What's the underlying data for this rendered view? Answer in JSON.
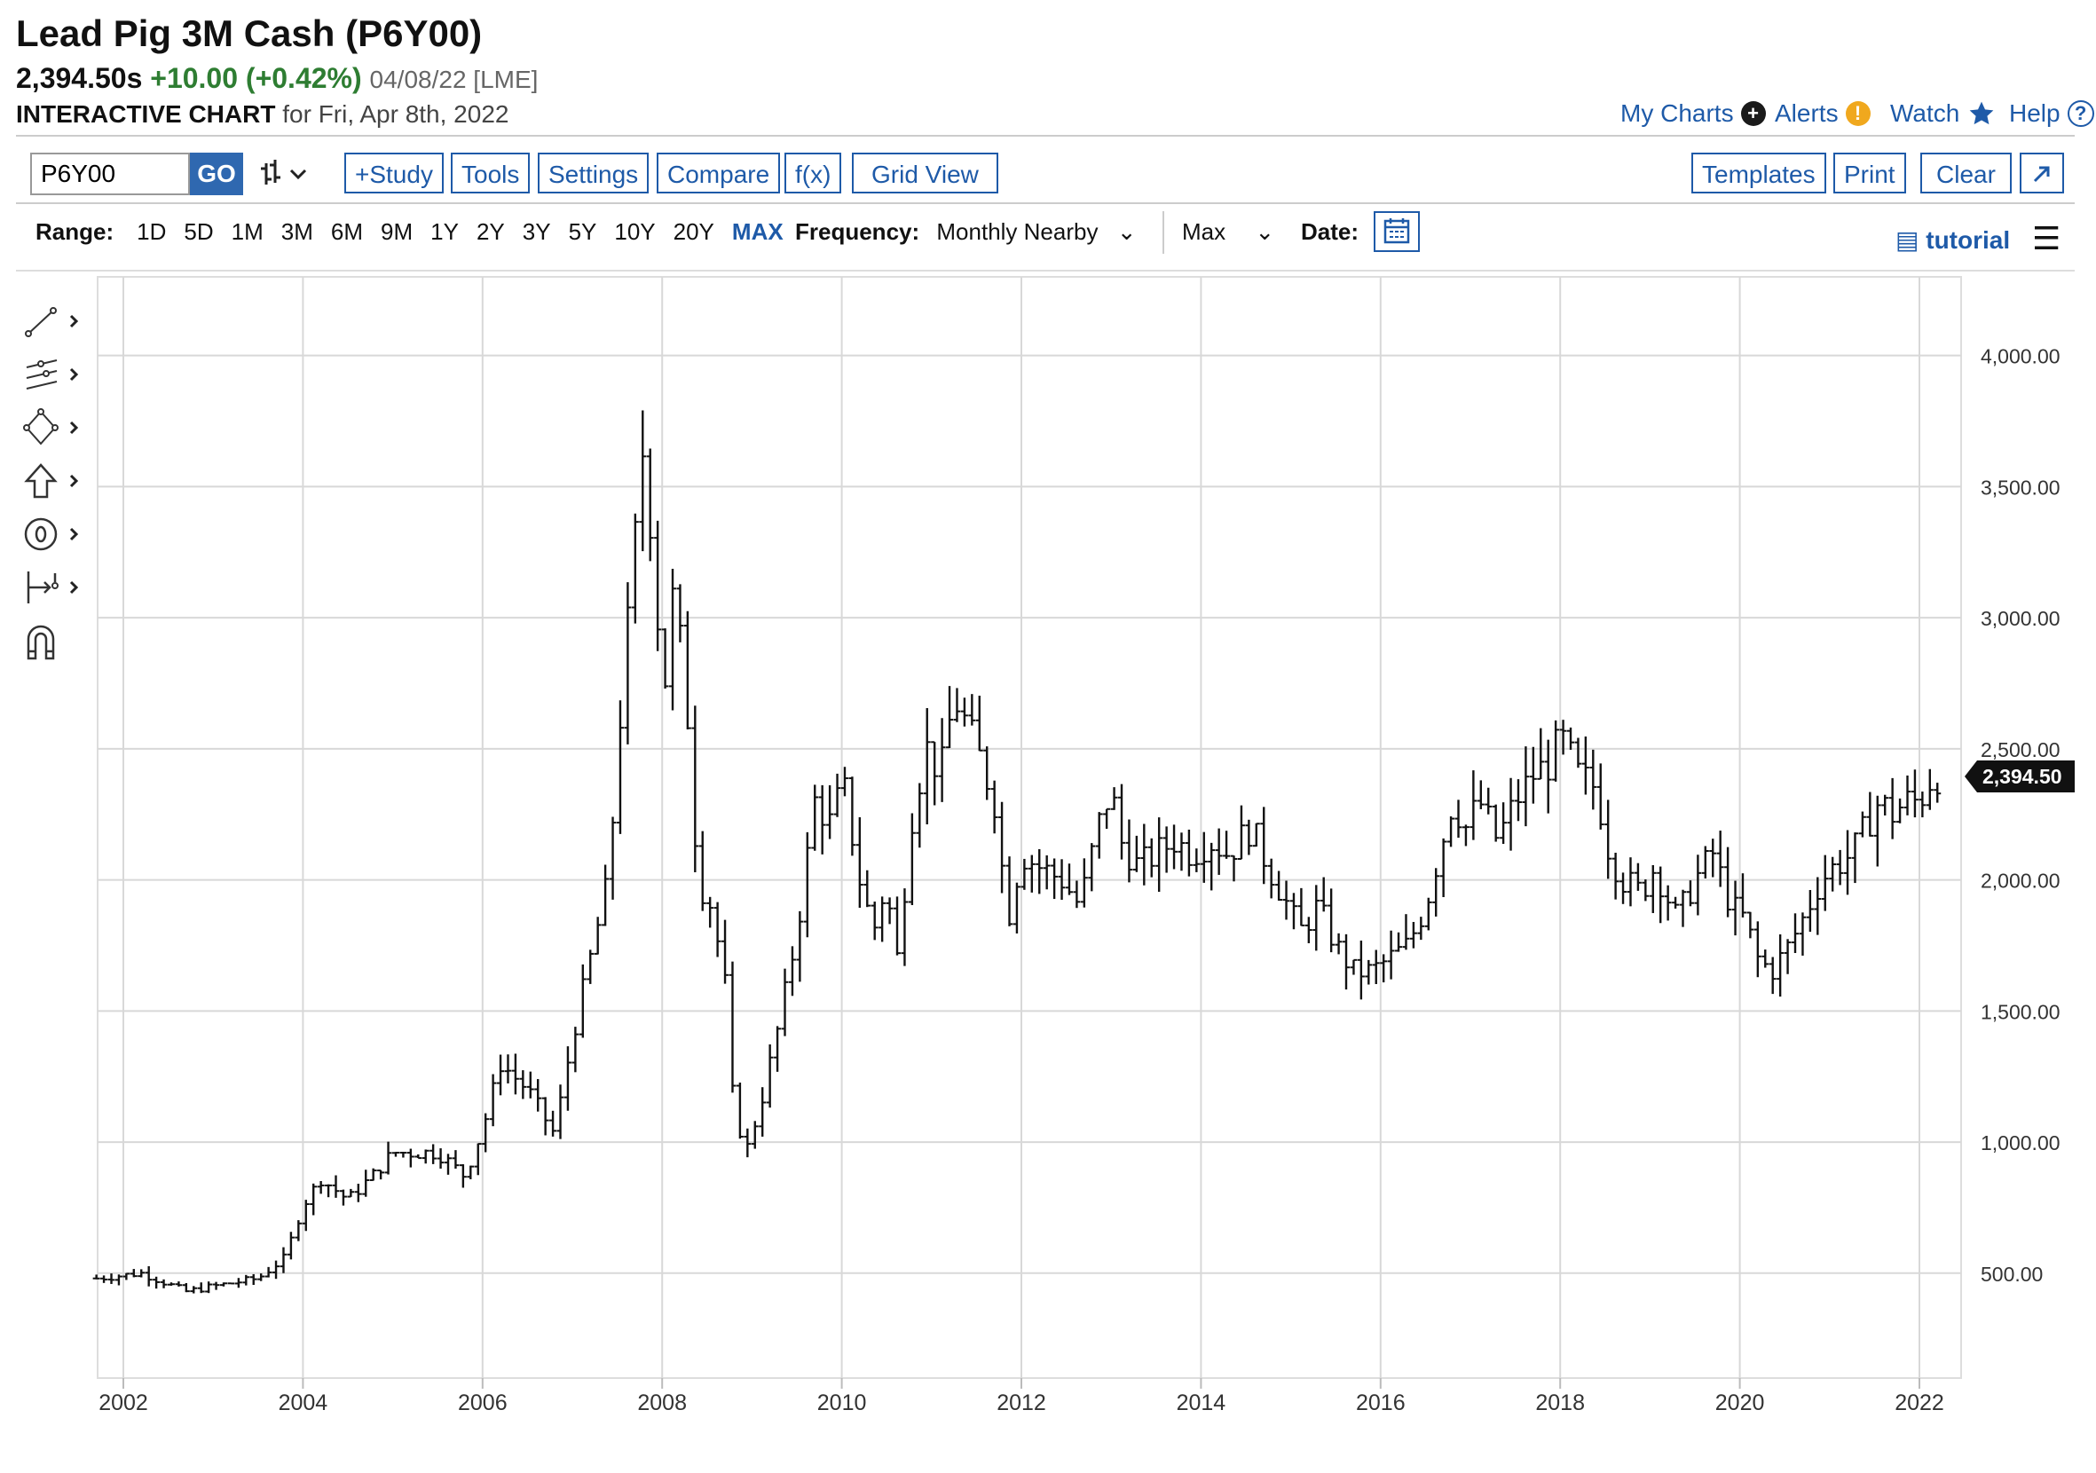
{
  "header": {
    "title": "Lead Pig 3M Cash (P6Y00)",
    "last": "2,394.50s",
    "change": "+10.00 (+0.42%)",
    "date_exchange": "04/08/22 [LME]",
    "subtitle_bold": "INTERACTIVE CHART",
    "subtitle_rest": "for Fri, Apr 8th, 2022"
  },
  "top_links": {
    "my_charts": "My Charts",
    "alerts": "Alerts",
    "watch": "Watch",
    "help": "Help"
  },
  "toolbar": {
    "symbol_value": "P6Y00",
    "go": "GO",
    "study": "+Study",
    "tools": "Tools",
    "settings": "Settings",
    "compare": "Compare",
    "fx": "f(x)",
    "grid_view": "Grid View",
    "templates": "Templates",
    "print": "Print",
    "clear": "Clear",
    "expand_icon": "expand-icon"
  },
  "range_bar": {
    "label": "Range:",
    "options": [
      "1D",
      "5D",
      "1M",
      "3M",
      "6M",
      "9M",
      "1Y",
      "2Y",
      "3Y",
      "5Y",
      "10Y",
      "20Y",
      "MAX"
    ],
    "active": "MAX",
    "frequency_label": "Frequency:",
    "frequency_value": "Monthly Nearby",
    "period_value": "Max",
    "date_label": "Date:",
    "tutorial": "tutorial"
  },
  "left_tools": [
    "line-tool-icon",
    "multi-line-tool-icon",
    "shape-tool-icon",
    "arrow-up-icon",
    "price-label-icon",
    "measure-tool-icon",
    "magnet-icon"
  ],
  "colors": {
    "accent": "#1e5aa8",
    "positive": "#2e7d32",
    "bars": "#111111",
    "grid": "#dddddd"
  },
  "chart_data": {
    "type": "ohlc",
    "frequency": "monthly",
    "x_tick_labels": [
      "2002",
      "2004",
      "2006",
      "2008",
      "2010",
      "2012",
      "2014",
      "2016",
      "2018",
      "2020",
      "2022"
    ],
    "y_tick_labels": [
      "500.00",
      "1,000.00",
      "1,500.00",
      "2,000.00",
      "2,500.00",
      "3,000.00",
      "3,500.00",
      "4,000.00"
    ],
    "ylim": [
      100,
      4300
    ],
    "last_price_label": "2,394.50",
    "last_price": 2394.5,
    "grid": true,
    "series_close": [
      [
        2001.7,
        480
      ],
      [
        2002.2,
        500
      ],
      [
        2002.7,
        430
      ],
      [
        2003.0,
        450
      ],
      [
        2003.5,
        480
      ],
      [
        2003.8,
        560
      ],
      [
        2004.0,
        760
      ],
      [
        2004.2,
        860
      ],
      [
        2004.5,
        780
      ],
      [
        2004.8,
        880
      ],
      [
        2005.0,
        960
      ],
      [
        2005.5,
        960
      ],
      [
        2005.8,
        870
      ],
      [
        2006.0,
        1050
      ],
      [
        2006.2,
        1300
      ],
      [
        2006.5,
        1200
      ],
      [
        2006.8,
        1030
      ],
      [
        2007.0,
        1400
      ],
      [
        2007.2,
        1700
      ],
      [
        2007.4,
        2000
      ],
      [
        2007.55,
        2700
      ],
      [
        2007.7,
        3300
      ],
      [
        2007.8,
        3700
      ],
      [
        2007.95,
        3000
      ],
      [
        2008.0,
        2600
      ],
      [
        2008.1,
        3100
      ],
      [
        2008.25,
        2800
      ],
      [
        2008.4,
        2000
      ],
      [
        2008.55,
        1900
      ],
      [
        2008.7,
        1600
      ],
      [
        2008.8,
        1100
      ],
      [
        2008.95,
        980
      ],
      [
        2009.1,
        1150
      ],
      [
        2009.3,
        1450
      ],
      [
        2009.5,
        1800
      ],
      [
        2009.7,
        2300
      ],
      [
        2009.9,
        2200
      ],
      [
        2010.0,
        2400
      ],
      [
        2010.2,
        2000
      ],
      [
        2010.35,
        1800
      ],
      [
        2010.5,
        2000
      ],
      [
        2010.6,
        1650
      ],
      [
        2010.8,
        2300
      ],
      [
        2010.95,
        2500
      ],
      [
        2011.1,
        2400
      ],
      [
        2011.25,
        2700
      ],
      [
        2011.5,
        2500
      ],
      [
        2011.7,
        2300
      ],
      [
        2011.85,
        1850
      ],
      [
        2012.0,
        2100
      ],
      [
        2012.2,
        2050
      ],
      [
        2012.45,
        2000
      ],
      [
        2012.65,
        1900
      ],
      [
        2012.85,
        2200
      ],
      [
        2013.0,
        2350
      ],
      [
        2013.1,
        2150
      ],
      [
        2013.3,
        2050
      ],
      [
        2013.5,
        2100
      ],
      [
        2013.7,
        2150
      ],
      [
        2013.9,
        2100
      ],
      [
        2014.1,
        2150
      ],
      [
        2014.3,
        2100
      ],
      [
        2014.55,
        2200
      ],
      [
        2014.75,
        2050
      ],
      [
        2014.9,
        1950
      ],
      [
        2015.1,
        1800
      ],
      [
        2015.3,
        1900
      ],
      [
        2015.5,
        1750
      ],
      [
        2015.7,
        1650
      ],
      [
        2015.9,
        1650
      ],
      [
        2016.1,
        1700
      ],
      [
        2016.3,
        1750
      ],
      [
        2016.5,
        1900
      ],
      [
        2016.65,
        2100
      ],
      [
        2016.8,
        2300
      ],
      [
        2016.95,
        2200
      ],
      [
        2017.1,
        2300
      ],
      [
        2017.3,
        2150
      ],
      [
        2017.5,
        2300
      ],
      [
        2017.7,
        2400
      ],
      [
        2017.9,
        2450
      ],
      [
        2018.0,
        2550
      ],
      [
        2018.2,
        2400
      ],
      [
        2018.4,
        2350
      ],
      [
        2018.55,
        2100
      ],
      [
        2018.7,
        2000
      ],
      [
        2018.9,
        1950
      ],
      [
        2019.05,
        2050
      ],
      [
        2019.3,
        1850
      ],
      [
        2019.5,
        2000
      ],
      [
        2019.7,
        2100
      ],
      [
        2019.9,
        1900
      ],
      [
        2020.05,
        1850
      ],
      [
        2020.2,
        1700
      ],
      [
        2020.35,
        1650
      ],
      [
        2020.55,
        1750
      ],
      [
        2020.7,
        1850
      ],
      [
        2020.9,
        2000
      ],
      [
        2021.05,
        2050
      ],
      [
        2021.25,
        2100
      ],
      [
        2021.4,
        2200
      ],
      [
        2021.55,
        2300
      ],
      [
        2021.7,
        2250
      ],
      [
        2021.85,
        2300
      ],
      [
        2022.0,
        2300
      ],
      [
        2022.15,
        2400
      ],
      [
        2022.27,
        2394.5
      ]
    ]
  }
}
